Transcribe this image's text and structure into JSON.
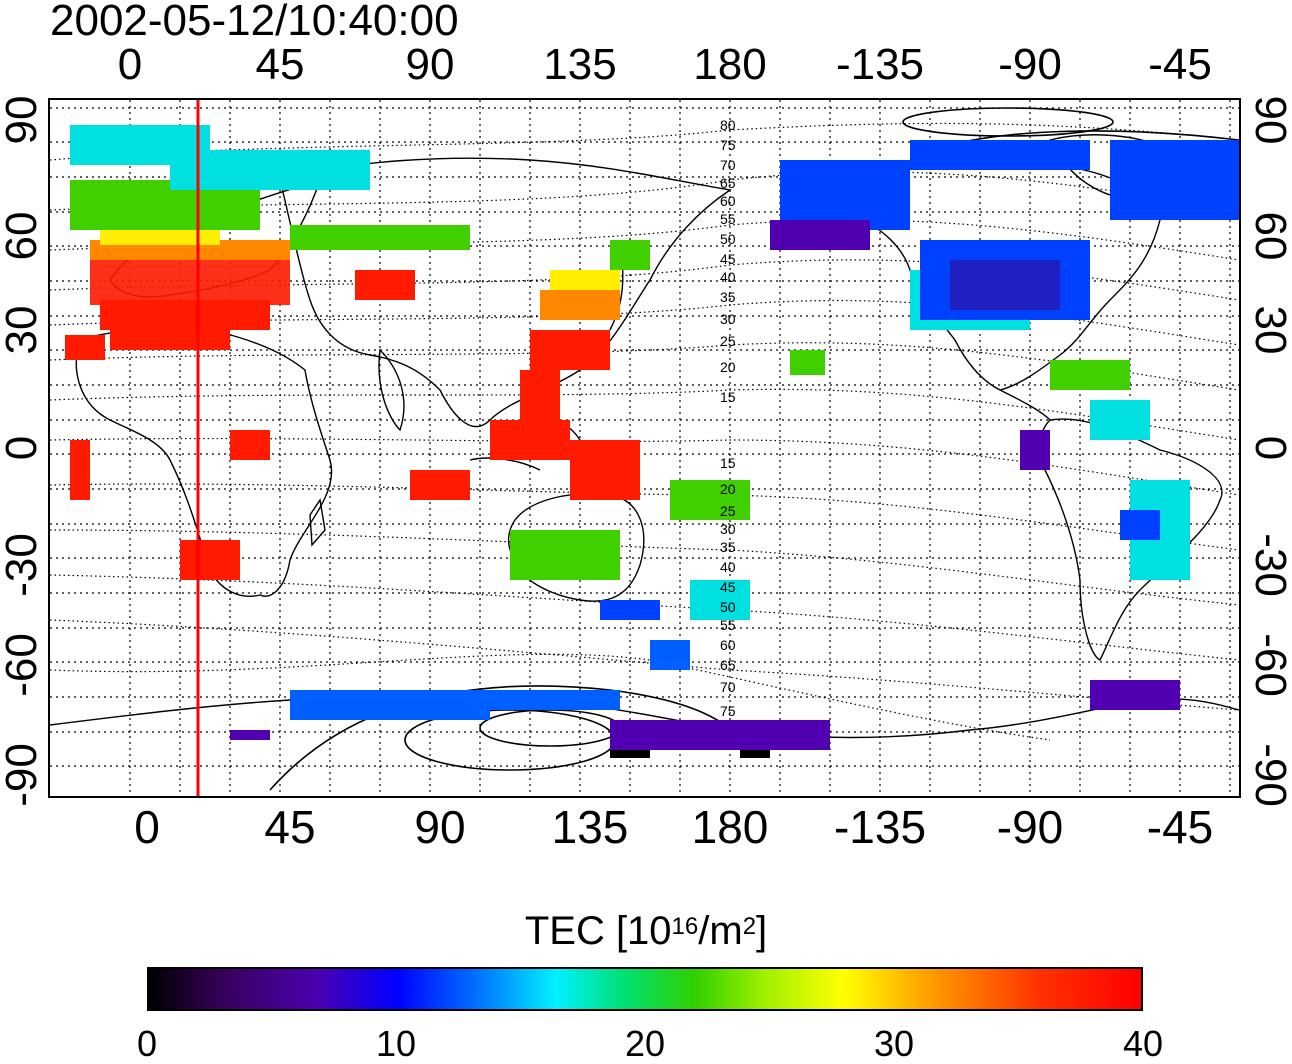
{
  "timestamp": "2002-05-12/10:40:00",
  "top_axis_labels": [
    "0",
    "45",
    "90",
    "135",
    "180",
    "-135",
    "-90",
    "-45"
  ],
  "bottom_axis_labels": [
    "0",
    "45",
    "90",
    "135",
    "180",
    "-135",
    "-90",
    "-45"
  ],
  "left_axis_labels": [
    "90",
    "60",
    "30",
    "0",
    "-30",
    "-60",
    "-90"
  ],
  "right_axis_labels": [
    "90",
    "60",
    "30",
    "0",
    "-30",
    "-60",
    "-90"
  ],
  "contour_labels": [
    "80",
    "75",
    "70",
    "65",
    "60",
    "55",
    "50",
    "45",
    "40",
    "35",
    "30",
    "25",
    "20",
    "15",
    "15",
    "20",
    "25",
    "30",
    "35",
    "40",
    "45",
    "50",
    "55",
    "60",
    "65",
    "70",
    "75"
  ],
  "colorbar": {
    "title_prefix": "TEC  [10",
    "title_exp": "16",
    "title_unit": "/m",
    "title_unit_exp": "2",
    "title_suffix": "]",
    "tick_labels": [
      "0",
      "10",
      "20",
      "30",
      "40"
    ]
  },
  "colors": {
    "marker_line": "#ff0000",
    "low": "#000000",
    "high": "#ff0000"
  }
}
